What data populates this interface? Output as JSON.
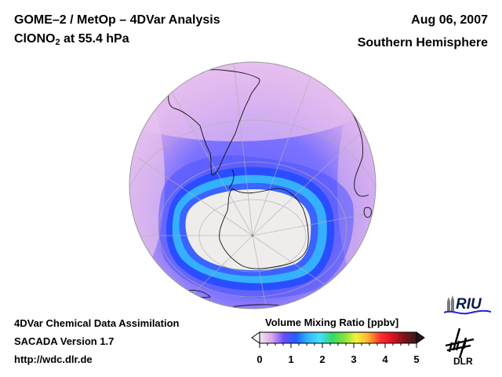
{
  "header": {
    "title_line1": "GOME–2 / MetOp – 4DVar Analysis",
    "title_species": "ClONO",
    "title_species_sub": "2",
    "title_level": " at 55.4 hPa",
    "date": "Aug 06, 2007",
    "hemisphere": "Southern Hemisphere"
  },
  "footer": {
    "line1": "4DVar Chemical Data Assimilation",
    "line2": "SACADA Version 1.7",
    "line3": "http://wdc.dlr.de"
  },
  "colorbar": {
    "title": "Volume Mixing Ratio [ppbv]",
    "ticks": [
      "0",
      "1",
      "2",
      "3",
      "4",
      "5"
    ],
    "range": [
      0,
      5
    ],
    "colors": [
      "#f2e6ee",
      "#d9a8e8",
      "#6a4cff",
      "#1f5fff",
      "#2fb7ff",
      "#46e0ff",
      "#31d96a",
      "#7ee43a",
      "#f5f23a",
      "#ffb030",
      "#ff3030",
      "#e01020",
      "#7a1418",
      "#3a1a1a"
    ]
  },
  "map": {
    "projection": "orthographic",
    "center": "South Pole",
    "ring_colors": {
      "outer": "#e2b8ec",
      "mid": "#8c7cff",
      "band": "#5a5cff",
      "collar_dark": "#2a4dff",
      "collar_light": "#36b4ff",
      "core": "#efecec"
    }
  },
  "logos": {
    "riu": "RIU",
    "dlr": "DLR"
  }
}
